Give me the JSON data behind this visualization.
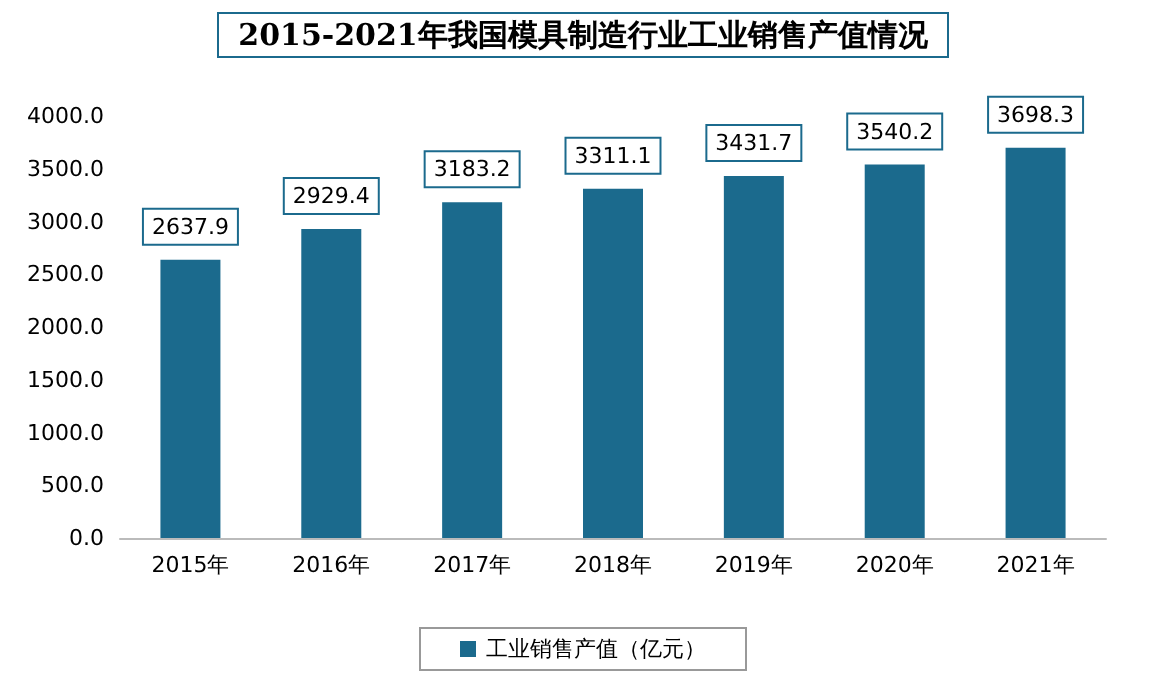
{
  "chart_data": {
    "type": "bar",
    "title": "2015-2021年我国模具制造行业工业销售产值情况",
    "categories": [
      "2015年",
      "2016年",
      "2017年",
      "2018年",
      "2019年",
      "2020年",
      "2021年"
    ],
    "series": [
      {
        "name": "工业销售产值（亿元）",
        "color": "#1b6a8d",
        "values": [
          2637.9,
          2929.4,
          3183.2,
          3311.1,
          3431.7,
          3540.2,
          3698.3
        ]
      }
    ],
    "ylim": [
      0,
      4000
    ],
    "yticks": [
      {
        "value": 0,
        "label": "0.0"
      },
      {
        "value": 500,
        "label": "500.0"
      },
      {
        "value": 1000,
        "label": "1000.0"
      },
      {
        "value": 1500,
        "label": "1500.0"
      },
      {
        "value": 2000,
        "label": "2000.0"
      },
      {
        "value": 2500,
        "label": "2500.0"
      },
      {
        "value": 3000,
        "label": "3000.0"
      },
      {
        "value": 3500,
        "label": "3500.0"
      },
      {
        "value": 4000,
        "label": "4000.0"
      }
    ],
    "data_labels": true,
    "grid": false,
    "legend": "bottom"
  }
}
